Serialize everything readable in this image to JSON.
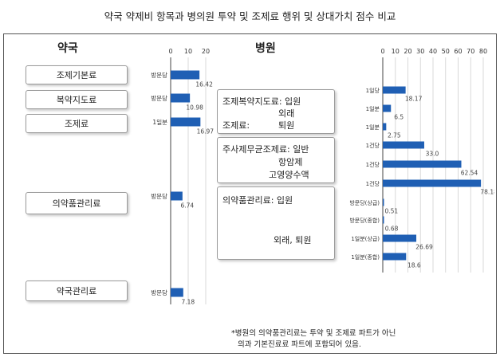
{
  "title": "약국 약제비 항목과 병의원 투약 및 조제료 행위 및 상대가치 점수 비교",
  "footnote": {
    "line1": "*병원의 의약품관리료는 투약 및 조제료 파트가 아닌",
    "line2": "의과 기본진료료 파트에 포함되어 있음."
  },
  "pharmacy": {
    "heading": "약국",
    "items": [
      {
        "label": "조제기본료"
      },
      {
        "label": "복약지도료"
      },
      {
        "label": "조제료"
      },
      {
        "label": "의약품관리료"
      },
      {
        "label": "약국관리료"
      }
    ]
  },
  "hospital": {
    "heading": "병원",
    "group1": {
      "line1": "조제복약지도료: 입원",
      "line2": "외래",
      "line3": "조제료:",
      "line4": "퇴원"
    },
    "group2": {
      "line1": "주사제무균조제료: 일반",
      "line2": "항암제",
      "line3": "고영양수액"
    },
    "group3": {
      "line1": "의약품관리료: 입원",
      "line2": "외래, 퇴원"
    }
  },
  "colors": {
    "bar": "#1f5fb4",
    "axis": "#444444",
    "grid": "#d9d9d9"
  },
  "chart_data": [
    {
      "type": "bar",
      "orientation": "horizontal",
      "xlim": [
        0,
        20
      ],
      "ticks": [
        0,
        10,
        20
      ],
      "categories": [
        "방문당",
        "방문당",
        "1일분",
        "방문당",
        "방문당"
      ],
      "values": [
        16.42,
        10.98,
        16.97,
        6.74,
        7.18
      ],
      "value_labels": [
        "16.42",
        "10.98",
        "16.97",
        "6.74",
        "7.18"
      ]
    },
    {
      "type": "bar",
      "orientation": "horizontal",
      "xlim": [
        0,
        80
      ],
      "ticks": [
        0,
        10,
        20,
        30,
        40,
        50,
        60,
        70,
        80
      ],
      "categories": [
        "1일당",
        "1일분",
        "1일분",
        "1건당",
        "1건당",
        "1건당",
        "방문당(상급)",
        "방문당(종합)",
        "1일분(상급)",
        "1일분(종합)"
      ],
      "values": [
        18.17,
        6.5,
        2.75,
        33.0,
        62.54,
        78.18,
        0.51,
        0.68,
        26.69,
        18.6
      ],
      "value_labels": [
        "18.17",
        "6.5",
        "2.75",
        "33.0",
        "62.54",
        "78.18",
        "0.51",
        "0.68",
        "26.69",
        "18.6"
      ]
    }
  ]
}
